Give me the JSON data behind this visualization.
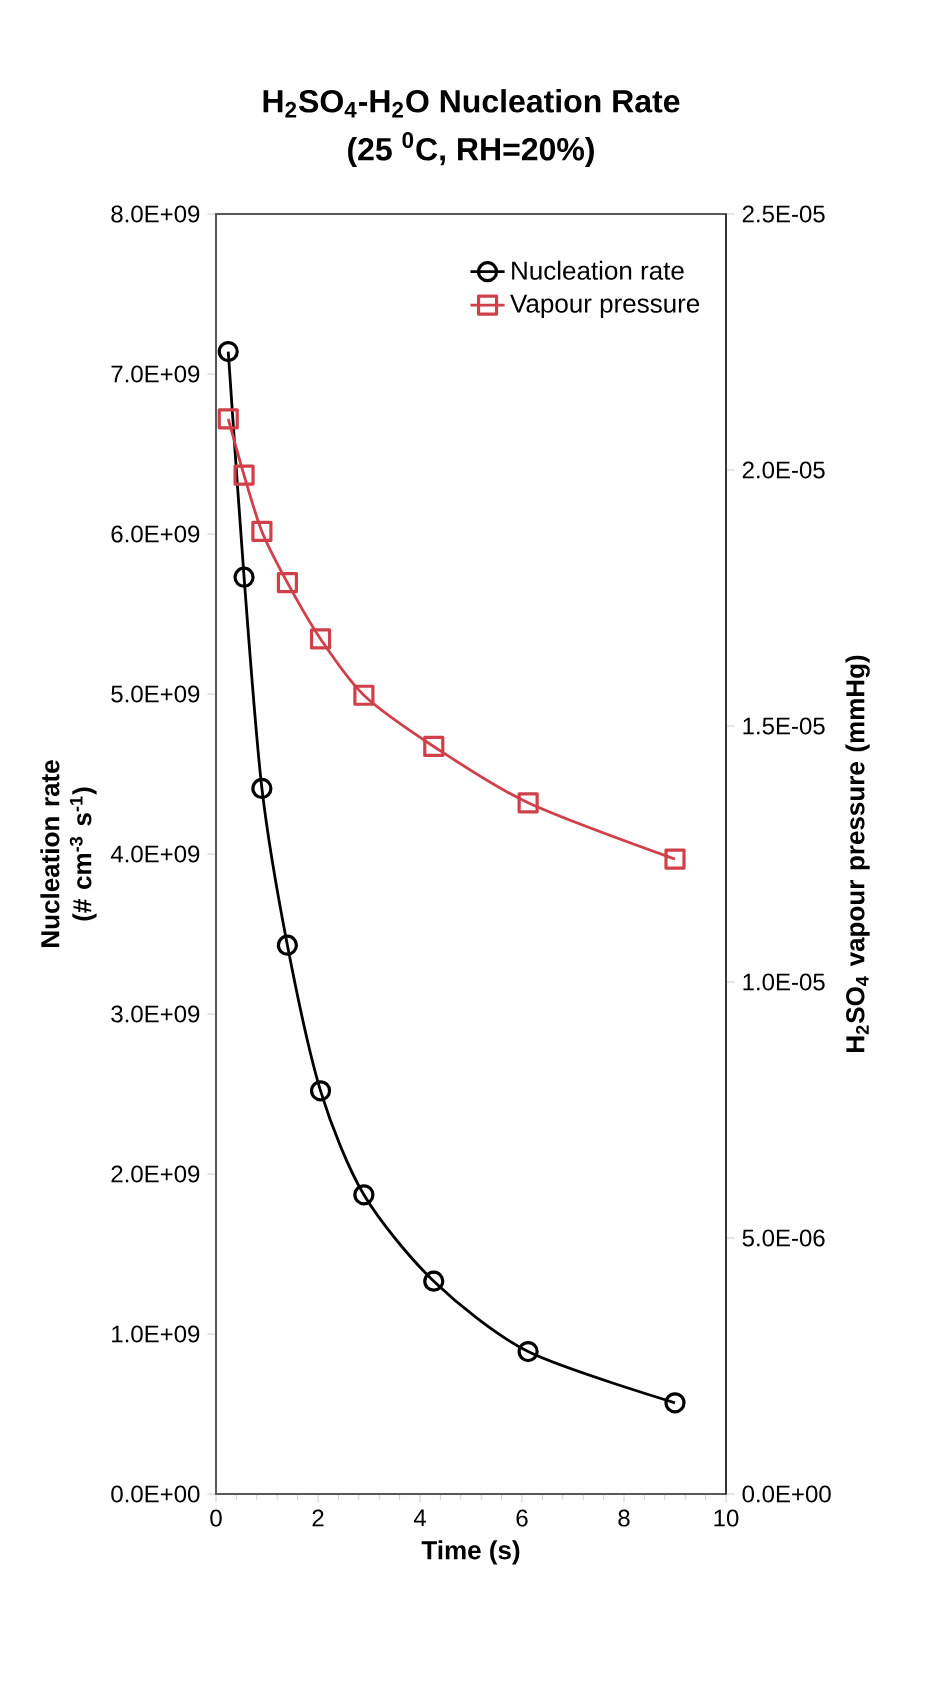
{
  "chart_data": {
    "type": "line",
    "title": "H$_{2}$SO$_{4}$-H$_{2}$O Nucleation Rate",
    "subtitle": "(25 $^{0}$C, RH=20%)",
    "xlabel": "Time (s)",
    "ylabel": "Nucleation rate (# cm$^{-3}$ s$^{-1}$)",
    "y2label": "H$_{2}$SO$_{4}$ vapour pressure (mmHg)",
    "x": [
      0.24,
      0.55,
      0.9,
      1.4,
      2.05,
      2.9,
      4.27,
      6.12,
      9.0
    ],
    "series": [
      {
        "name": "Nucleation rate",
        "color": "#000000",
        "marker": "circle",
        "values": [
          7140000000.0,
          5730000000.0,
          4410000000.0,
          3430000000.0,
          2520000000.0,
          1870000000.0,
          1330000000.0,
          890000000.0,
          570000000.0
        ]
      },
      {
        "name": "Vapour pressure",
        "color": "#d0404a",
        "marker": "square",
        "axis": "y2",
        "values": [
          2.1e-05,
          1.99e-05,
          1.88e-05,
          1.78e-05,
          1.67e-05,
          1.56e-05,
          1.46e-05,
          1.35e-05,
          1.24e-05
        ]
      }
    ],
    "xlim": [
      0,
      10
    ],
    "xticks": [
      0,
      2,
      4,
      6,
      8,
      10
    ],
    "ylim": [
      0,
      8000000000.0
    ],
    "yticks": [
      {
        "value": 0,
        "label": "0.0E+00"
      },
      {
        "value": 1000000000.0,
        "label": "1.0E+09"
      },
      {
        "value": 2000000000.0,
        "label": "2.0E+09"
      },
      {
        "value": 3000000000.0,
        "label": "3.0E+09"
      },
      {
        "value": 4000000000.0,
        "label": "4.0E+09"
      },
      {
        "value": 5000000000.0,
        "label": "5.0E+09"
      },
      {
        "value": 6000000000.0,
        "label": "6.0E+09"
      },
      {
        "value": 7000000000.0,
        "label": "7.0E+09"
      },
      {
        "value": 8000000000.0,
        "label": "8.0E+09"
      }
    ],
    "y2lim": [
      0,
      2.5e-05
    ],
    "y2ticks": [
      {
        "value": 0,
        "label": "0.0E+00"
      },
      {
        "value": 5e-06,
        "label": "5.0E-06"
      },
      {
        "value": 1e-05,
        "label": "1.0E-05"
      },
      {
        "value": 1.5e-05,
        "label": "1.5E-05"
      },
      {
        "value": 2e-05,
        "label": "2.0E-05"
      },
      {
        "value": 2.5e-05,
        "label": "2.5E-05"
      }
    ],
    "legend": "top right"
  }
}
